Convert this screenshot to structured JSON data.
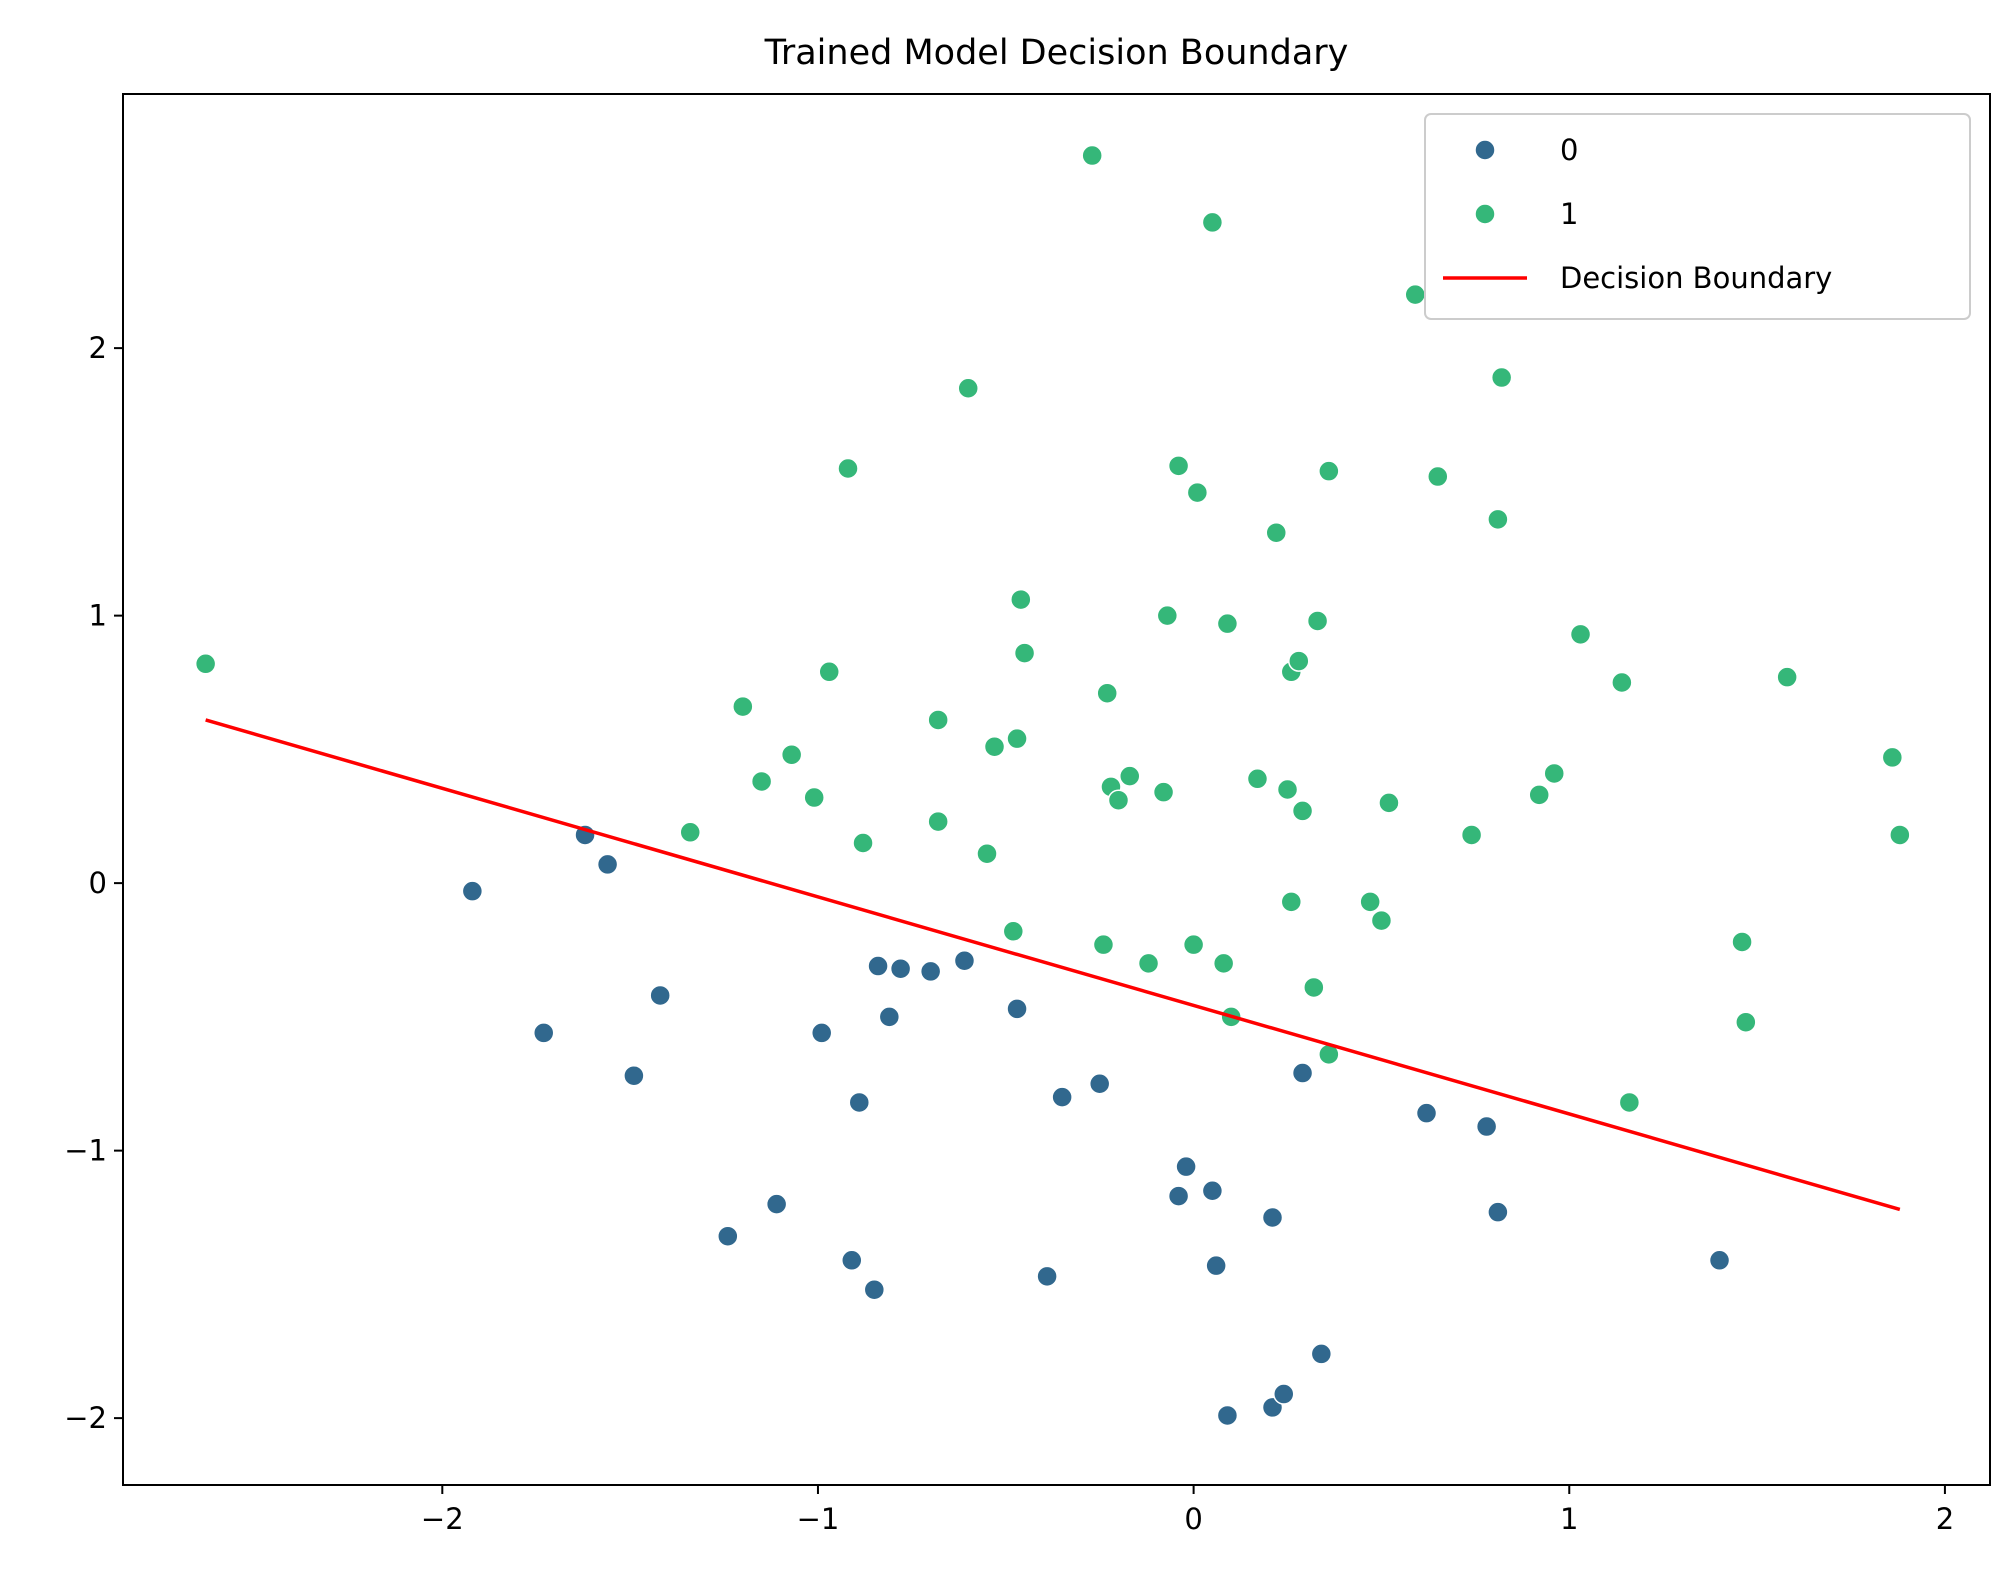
{
  "chart_data": {
    "type": "scatter",
    "title": "Trained Model Decision Boundary",
    "xlabel": "",
    "ylabel": "",
    "xlim": [
      -2.85,
      2.12
    ],
    "ylim": [
      -2.25,
      2.95
    ],
    "xticks": [
      {
        "value": -2,
        "label": "−2"
      },
      {
        "value": -1,
        "label": "−1"
      },
      {
        "value": 0,
        "label": "0"
      },
      {
        "value": 1,
        "label": "1"
      },
      {
        "value": 2,
        "label": "2"
      }
    ],
    "yticks": [
      {
        "value": 2,
        "label": "2"
      },
      {
        "value": 1,
        "label": "1"
      },
      {
        "value": 0,
        "label": "0"
      },
      {
        "value": -1,
        "label": "−1"
      },
      {
        "value": -2,
        "label": "−2"
      }
    ],
    "grid": false,
    "legend_position": "upper right",
    "colors": {
      "class_0": "#31688e",
      "class_1": "#35b779",
      "boundary": "#ff0000",
      "marker_edge": "#ffffff"
    },
    "series": [
      {
        "name": "0",
        "points": [
          [
            -1.92,
            -0.03
          ],
          [
            -1.62,
            0.18
          ],
          [
            -1.56,
            0.07
          ],
          [
            -1.73,
            -0.56
          ],
          [
            -1.42,
            -0.42
          ],
          [
            -1.49,
            -0.72
          ],
          [
            -1.24,
            -1.32
          ],
          [
            -1.11,
            -1.2
          ],
          [
            -0.99,
            -0.56
          ],
          [
            -0.91,
            -1.41
          ],
          [
            -0.89,
            -0.82
          ],
          [
            -0.85,
            -1.52
          ],
          [
            -0.84,
            -0.31
          ],
          [
            -0.81,
            -0.5
          ],
          [
            -0.78,
            -0.32
          ],
          [
            -0.7,
            -0.33
          ],
          [
            -0.61,
            -0.29
          ],
          [
            -0.47,
            -0.47
          ],
          [
            -0.39,
            -1.47
          ],
          [
            -0.35,
            -0.8
          ],
          [
            -0.25,
            -0.75
          ],
          [
            -0.04,
            -1.17
          ],
          [
            -0.02,
            -1.06
          ],
          [
            0.05,
            -1.15
          ],
          [
            0.06,
            -1.43
          ],
          [
            0.09,
            -1.99
          ],
          [
            0.21,
            -1.96
          ],
          [
            0.21,
            -1.25
          ],
          [
            0.24,
            -1.91
          ],
          [
            0.29,
            -0.71
          ],
          [
            0.34,
            -1.76
          ],
          [
            0.62,
            -0.86
          ],
          [
            0.78,
            -0.91
          ],
          [
            0.81,
            -1.23
          ],
          [
            1.4,
            -1.41
          ]
        ]
      },
      {
        "name": "1",
        "points": [
          [
            -2.63,
            0.82
          ],
          [
            -1.34,
            0.19
          ],
          [
            -1.2,
            0.66
          ],
          [
            -1.15,
            0.38
          ],
          [
            -1.07,
            0.48
          ],
          [
            -1.01,
            0.32
          ],
          [
            -0.97,
            0.79
          ],
          [
            -0.92,
            1.55
          ],
          [
            -0.88,
            0.15
          ],
          [
            -0.68,
            0.61
          ],
          [
            -0.68,
            0.23
          ],
          [
            -0.6,
            1.85
          ],
          [
            -0.55,
            0.11
          ],
          [
            -0.53,
            0.51
          ],
          [
            -0.48,
            -0.18
          ],
          [
            -0.47,
            0.54
          ],
          [
            -0.46,
            1.06
          ],
          [
            -0.45,
            0.86
          ],
          [
            -0.27,
            2.72
          ],
          [
            -0.24,
            -0.23
          ],
          [
            -0.23,
            0.71
          ],
          [
            -0.22,
            0.36
          ],
          [
            -0.2,
            0.31
          ],
          [
            -0.17,
            0.4
          ],
          [
            -0.12,
            -0.3
          ],
          [
            -0.08,
            0.34
          ],
          [
            -0.07,
            1.0
          ],
          [
            -0.04,
            1.56
          ],
          [
            0.0,
            -0.23
          ],
          [
            0.01,
            1.46
          ],
          [
            0.05,
            2.47
          ],
          [
            0.08,
            -0.3
          ],
          [
            0.09,
            0.97
          ],
          [
            0.1,
            -0.5
          ],
          [
            0.17,
            0.39
          ],
          [
            0.22,
            1.31
          ],
          [
            0.25,
            0.35
          ],
          [
            0.26,
            0.79
          ],
          [
            0.26,
            -0.07
          ],
          [
            0.28,
            0.83
          ],
          [
            0.29,
            0.27
          ],
          [
            0.32,
            -0.39
          ],
          [
            0.33,
            0.98
          ],
          [
            0.36,
            1.54
          ],
          [
            0.36,
            -0.64
          ],
          [
            0.47,
            -0.07
          ],
          [
            0.5,
            -0.14
          ],
          [
            0.52,
            0.3
          ],
          [
            0.59,
            2.2
          ],
          [
            0.65,
            1.52
          ],
          [
            0.74,
            0.18
          ],
          [
            0.81,
            1.36
          ],
          [
            0.82,
            1.89
          ],
          [
            0.92,
            0.33
          ],
          [
            0.96,
            0.41
          ],
          [
            1.03,
            0.93
          ],
          [
            1.14,
            0.75
          ],
          [
            1.16,
            -0.82
          ],
          [
            1.46,
            -0.22
          ],
          [
            1.47,
            -0.52
          ],
          [
            1.58,
            0.77
          ],
          [
            1.86,
            0.47
          ],
          [
            1.88,
            0.18
          ]
        ]
      }
    ],
    "decision_boundary": {
      "name": "Decision Boundary",
      "x": [
        -2.63,
        1.88
      ],
      "y": [
        0.61,
        -1.22
      ]
    },
    "legend": [
      {
        "label": "0",
        "kind": "marker",
        "color_key": "class_0"
      },
      {
        "label": "1",
        "kind": "marker",
        "color_key": "class_1"
      },
      {
        "label": "Decision Boundary",
        "kind": "line",
        "color_key": "boundary"
      }
    ]
  }
}
